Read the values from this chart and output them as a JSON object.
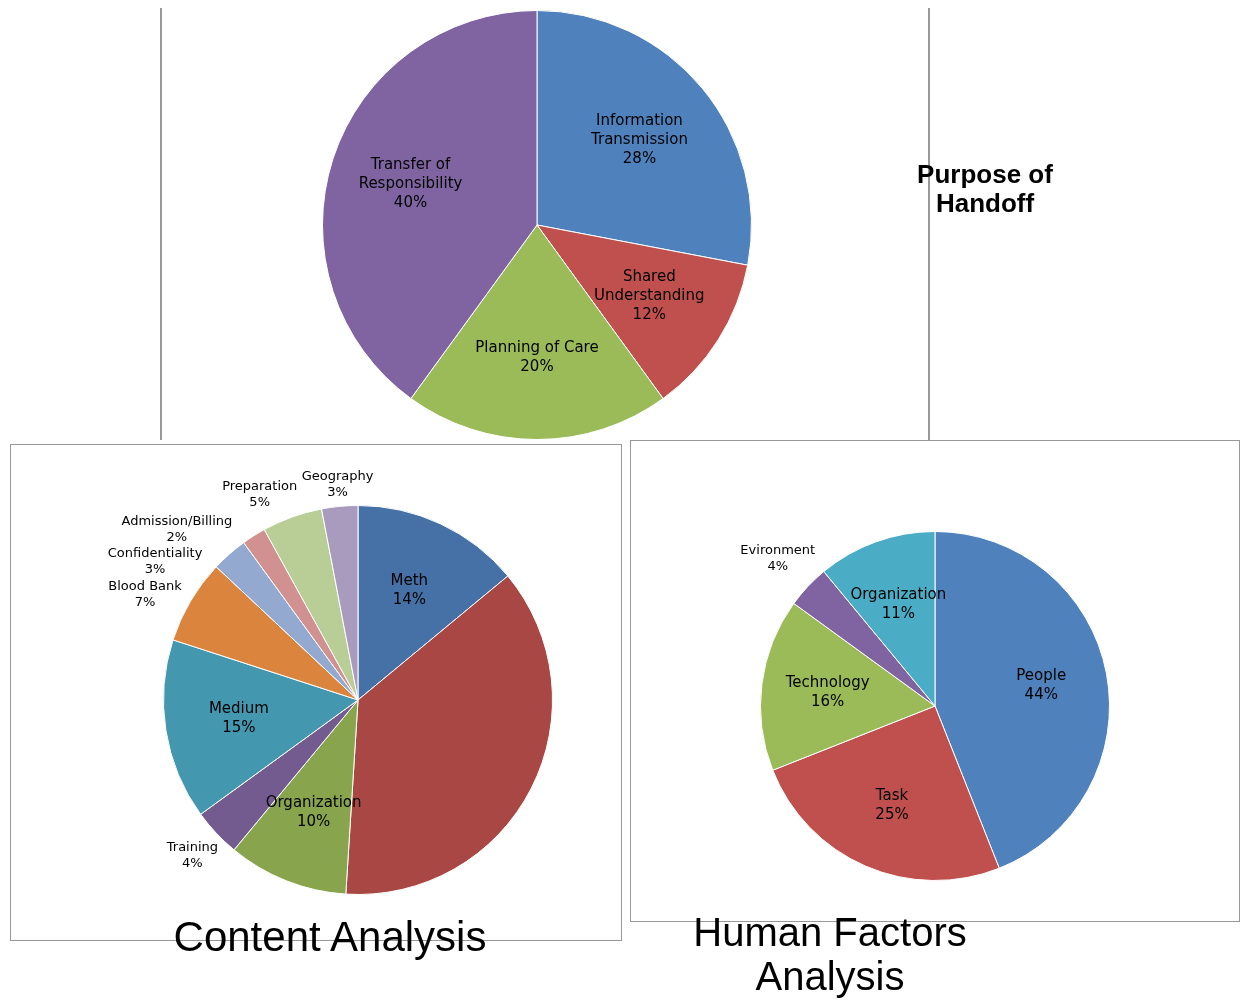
{
  "chart_data": [
    {
      "type": "pie",
      "title": "Purpose of Handoff",
      "categories": [
        "Information Transmission",
        "Shared Understanding",
        "Planning of Care",
        "Transfer of Responsibility"
      ],
      "values": [
        28,
        12,
        20,
        40
      ],
      "value_labels": [
        "28%",
        "12%",
        "20%",
        "40%"
      ],
      "colors": [
        "#4f81bd",
        "#c0504d",
        "#9bbb59",
        "#8064a2"
      ],
      "legend": false
    },
    {
      "type": "pie",
      "title": "Content Analysis",
      "categories": [
        "Meth",
        null,
        "Organization",
        "Training",
        "Medium",
        "Blood Bank",
        "Confidentiality",
        "Admission/Billing",
        "Preparation",
        "Geography"
      ],
      "values": [
        14,
        37,
        10,
        4,
        15,
        7,
        3,
        2,
        5,
        3
      ],
      "value_labels": [
        "14%",
        null,
        "10%",
        "4%",
        "15%",
        "7%",
        "3%",
        "2%",
        "5%",
        "3%"
      ],
      "colors": [
        "#4571a6",
        "#a84744",
        "#88a54d",
        "#735a8f",
        "#4398b0",
        "#db843d",
        "#93a9cf",
        "#d09190",
        "#b9cd96",
        "#a99bbd"
      ],
      "legend": false
    },
    {
      "type": "pie",
      "title": "Human Factors Analysis",
      "categories": [
        "People",
        "Task",
        "Technology",
        "Evironment",
        "Organization"
      ],
      "values": [
        44,
        25,
        16,
        4,
        11
      ],
      "value_labels": [
        "44%",
        "25%",
        "16%",
        "4%",
        "11%"
      ],
      "colors": [
        "#4f81bd",
        "#c0504d",
        "#9bbb59",
        "#8064a2",
        "#4bacc6"
      ],
      "legend": false
    }
  ]
}
